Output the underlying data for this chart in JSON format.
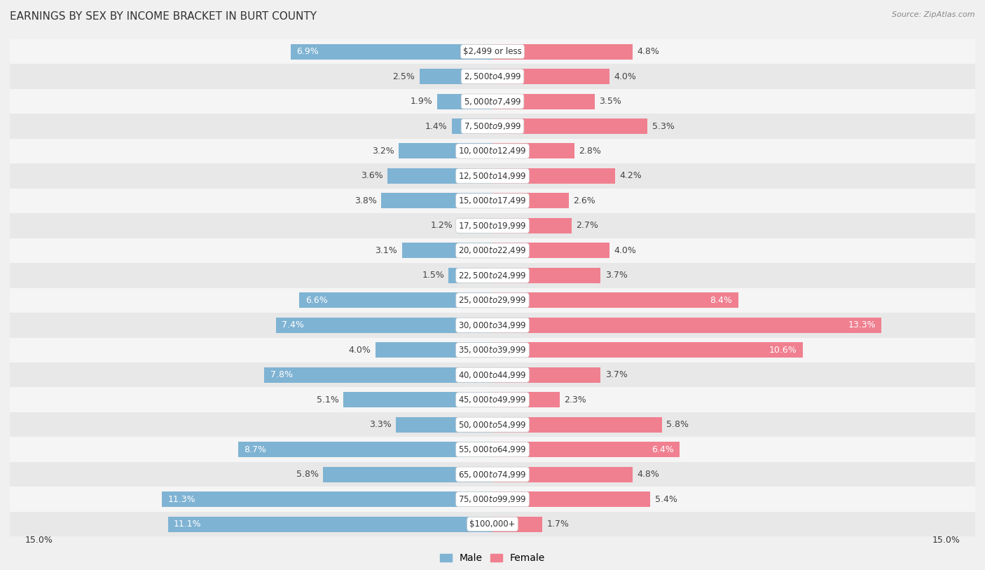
{
  "title": "EARNINGS BY SEX BY INCOME BRACKET IN BURT COUNTY",
  "source": "Source: ZipAtlas.com",
  "categories": [
    "$2,499 or less",
    "$2,500 to $4,999",
    "$5,000 to $7,499",
    "$7,500 to $9,999",
    "$10,000 to $12,499",
    "$12,500 to $14,999",
    "$15,000 to $17,499",
    "$17,500 to $19,999",
    "$20,000 to $22,499",
    "$22,500 to $24,999",
    "$25,000 to $29,999",
    "$30,000 to $34,999",
    "$35,000 to $39,999",
    "$40,000 to $44,999",
    "$45,000 to $49,999",
    "$50,000 to $54,999",
    "$55,000 to $64,999",
    "$65,000 to $74,999",
    "$75,000 to $99,999",
    "$100,000+"
  ],
  "male_values": [
    6.9,
    2.5,
    1.9,
    1.4,
    3.2,
    3.6,
    3.8,
    1.2,
    3.1,
    1.5,
    6.6,
    7.4,
    4.0,
    7.8,
    5.1,
    3.3,
    8.7,
    5.8,
    11.3,
    11.1
  ],
  "female_values": [
    4.8,
    4.0,
    3.5,
    5.3,
    2.8,
    4.2,
    2.6,
    2.7,
    4.0,
    3.7,
    8.4,
    13.3,
    10.6,
    3.7,
    2.3,
    5.8,
    6.4,
    4.8,
    5.4,
    1.7
  ],
  "male_color": "#7fb3d3",
  "female_color": "#f08090",
  "row_color_odd": "#f5f5f5",
  "row_color_even": "#e8e8e8",
  "background_color": "#f0f0f0",
  "axis_limit": 15.0,
  "title_fontsize": 11,
  "label_fontsize": 9,
  "category_fontsize": 8.5,
  "tick_fontsize": 9,
  "legend_fontsize": 10
}
